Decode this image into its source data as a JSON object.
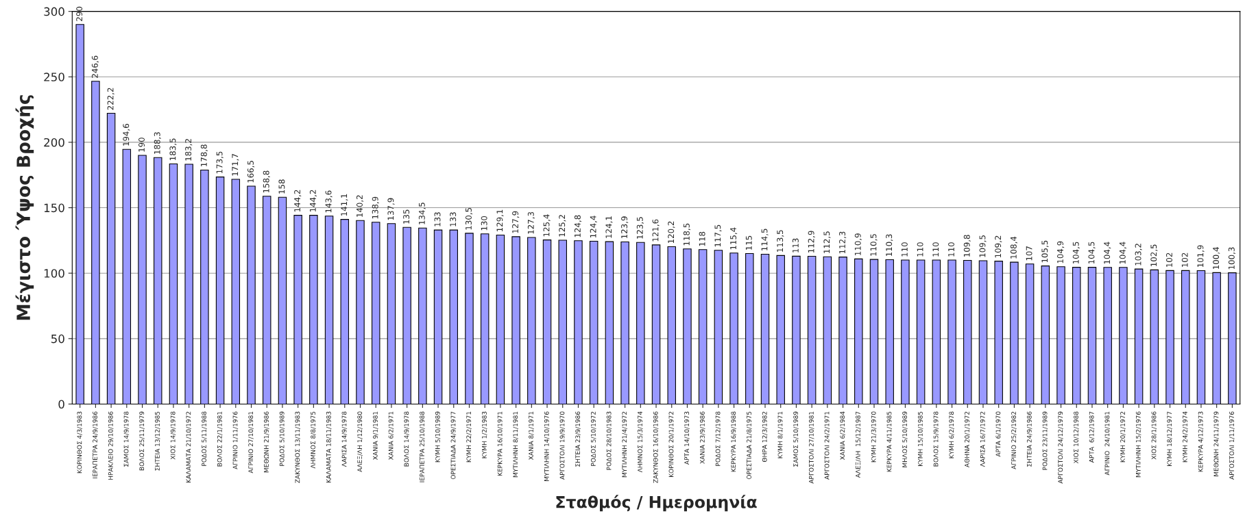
{
  "chart_data": {
    "type": "bar",
    "xlabel": "Σταθμός / Ημερομηνία",
    "ylabel": "Μέγιστο Ύψος Βροχής",
    "categories": [
      "ΚΟΡΙΝΘΟΣ 4/3/1983",
      "ΙΕΡΑΠΕΤΡΑ 24/9/1986",
      "ΗΡΑΚΛΕΙΟ 29/10/1986",
      "ΣΑΜΟΣ 14/9/1978",
      "ΒΟΛΟΣ 25/11/1979",
      "ΣΗΤΕΙΑ 13/12/1985",
      "ΧΙΟΣ 14/9/1978",
      "ΚΑΛΑΜΑΤΑ 21/10/1972",
      "ΡΟΔΟΣ 5/11/1988",
      "ΒΟΛΟΣ 22/1/1981",
      "ΑΓΡΙΝΙΟ 1/11/1976",
      "ΑΓΡΙΝΙΟ 27/10/1981",
      "ΜΕΘΩΝΗ 21/9/1986",
      "ΡΟΔΟΣ 5/10/1989",
      "ΖΑΚΥΝΘΟΣ 13/11/1983",
      "ΛΗΜΝΟΣ 8/8/1975",
      "ΚΑΛΑΜΑΤΑ 18/11/1983",
      "ΛΑΡΙΣΑ 14/9/1978",
      "ΑΛΕΞ/ΛΗ 1/12/1980",
      "ΧΑΝΙΑ 9/1/1981",
      "ΧΑΝΙΑ 6/2/1971",
      "ΒΟΛΟΣ 14/9/1978",
      "ΙΕΡΑΠΕΤΡΑ 25/10/1988",
      "ΚΥΜΗ 5/10/1989",
      "ΟΡΕΣΤΙΑΔΑ 24/9/1977",
      "ΚΥΜΗ 22/2/1971",
      "ΚΥΜΗ 1/2/1983",
      "ΚΕΡΚΥΡΑ 16/10/1971",
      "ΜΥΤΙΛΗΝΗ 8/11/1981",
      "ΧΑΝΙΑ 8/1/1971",
      "ΜΥΤΙΛΗΝΗ 14/10/1976",
      "ΑΡΓΟΣΤΟΛΙ 19/9/1970",
      "ΣΗΤΕΙΑ 23/9/1986",
      "ΡΟΔΟΣ 5/10/1972",
      "ΡΟΔΟΣ 28/10/1983",
      "ΜΥΤΙΛΗΝΗ 21/4/1972",
      "ΛΗΜΝΟΣ 15/3/1974",
      "ΖΑΚΥΝΘΟΣ 16/10/1986",
      "ΚΟΡΙΝΘΟΣ 20/1/1972",
      "ΑΡΤΑ 14/10/1973",
      "ΧΑΝΙΑ 23/9/1986",
      "ΡΟΔΟΣ 7/12/1978",
      "ΚΕΡΚΥΡΑ 16/9/1988",
      "ΟΡΕΣΤΙΑΔΑ 21/8/1975",
      "ΘΗΡΑ 12/3/1982",
      "ΚΥΜΗ 8/1/1971",
      "ΣΑΜΟΣ 5/10/1989",
      "ΑΡΓΟΣΤΟΛΙ 27/10/1981",
      "ΑΡΓΟΣΤΟΛΙ 24/2/1971",
      "ΧΑΝΙΑ 6/2/1984",
      "ΑΛΕΞ/ΛΗ  15/12/1987",
      "ΚΥΜΗ 21/3/1970",
      "ΚΕΡΚΥΡΑ 4/11/1985",
      "ΜΗΛΟΣ 5/10/1989",
      "ΚΥΜΗ 15/10/1985",
      "ΒΟΛΟΣ 15/9/1978",
      "ΚΥΜΗ 6/2/1978",
      "ΑΘΗΝΑ 20/1/1972",
      "ΛΑΡΙΣΑ 16/7/1972",
      "ΑΡΤΑ 6/1/1970",
      "ΑΓΡΙΝΙΟ 25/2/1982",
      "ΣΗΤΕΙΑ 24/9/1986",
      "ΡΟΔΟΣ 23/11/1989",
      "ΑΡΓΟΣΤΟΛΙ 24/12/1979",
      "ΧΙΟΣ 10/12/1988",
      "ΑΡΤΑ  6/12/1987",
      "ΑΓΡΙΝΙΟ  24/10/1981",
      "ΚΥΜΗ 20/1/1972",
      "ΜΥΤΙΛΗΝΗ 15/2/1976",
      "ΧΙΟΣ 28/1/1986",
      "ΚΥΜΗ 18/12/1977",
      "ΚΥΜΗ 24/2/1974",
      "ΚΕΡΚΥΡΑ 4/12/1973",
      "ΜΕΘΩΝΗ 24/11/1979",
      "ΑΡΓΟΣΤΟΛΙ 1/11/1976"
    ],
    "values": [
      290,
      246.6,
      222.2,
      194.6,
      190,
      188.3,
      183.5,
      183.2,
      178.8,
      173.5,
      171.7,
      166.5,
      158.8,
      158,
      144.2,
      144.2,
      143.6,
      141.1,
      140.2,
      138.9,
      137.9,
      135,
      134.5,
      133,
      133,
      130.5,
      130,
      129.1,
      127.9,
      127.3,
      125.4,
      125.2,
      124.8,
      124.4,
      124.1,
      123.9,
      123.5,
      121.6,
      120.2,
      118.5,
      118,
      117.5,
      115.4,
      115,
      114.5,
      113.5,
      113,
      112.9,
      112.5,
      112.3,
      110.9,
      110.5,
      110.3,
      110,
      110,
      110,
      110,
      109.8,
      109.5,
      109.2,
      108.4,
      107,
      105.5,
      104.9,
      104.5,
      104.5,
      104.4,
      104.4,
      103.2,
      102.5,
      102,
      102,
      101.9,
      100.4,
      100.3
    ],
    "value_labels": [
      "290",
      "246,6",
      "222,2",
      "194,6",
      "190",
      "188,3",
      "183,5",
      "183,2",
      "178,8",
      "173,5",
      "171,7",
      "166,5",
      "158,8",
      "158",
      "144,2",
      "144,2",
      "143,6",
      "141,1",
      "140,2",
      "138,9",
      "137,9",
      "135",
      "134,5",
      "133",
      "133",
      "130,5",
      "130",
      "129,1",
      "127,9",
      "127,3",
      "125,4",
      "125,2",
      "124,8",
      "124,4",
      "124,1",
      "123,9",
      "123,5",
      "121,6",
      "120,2",
      "118,5",
      "118",
      "117,5",
      "115,4",
      "115",
      "114,5",
      "113,5",
      "113",
      "112,9",
      "112,5",
      "112,3",
      "110,9",
      "110,5",
      "110,3",
      "110",
      "110",
      "110",
      "110",
      "109,8",
      "109,5",
      "109,2",
      "108,4",
      "107",
      "105,5",
      "104,9",
      "104,5",
      "104,5",
      "104,4",
      "104,4",
      "103,2",
      "102,5",
      "102",
      "102",
      "101,9",
      "100,4",
      "100,3"
    ],
    "color": "#9999ff",
    "ylim": [
      0,
      300
    ],
    "yticks": [
      0,
      50,
      100,
      150,
      200,
      250,
      300
    ],
    "grid": "y",
    "legend": false
  }
}
